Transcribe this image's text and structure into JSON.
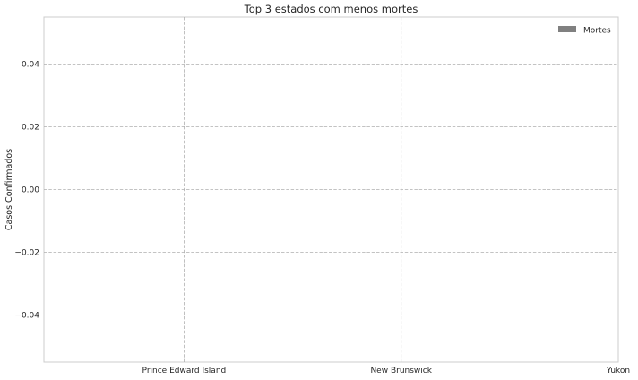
{
  "chart_data": {
    "type": "bar",
    "title": "Top 3 estados com menos mortes",
    "xlabel": "",
    "ylabel": "Casos Confirmados",
    "categories": [
      "Prince Edward Island",
      "New Brunswick",
      "Yukon"
    ],
    "series": [
      {
        "name": "Mortes",
        "values": [
          0,
          0,
          0
        ],
        "color": "#808080"
      }
    ],
    "ylim": [
      -0.055,
      0.055
    ],
    "yticks": [
      -0.04,
      -0.02,
      0.0,
      0.02,
      0.04
    ],
    "ytick_labels": [
      "−0.04",
      "−0.02",
      "0.00",
      "0.02",
      "0.04"
    ],
    "grid": true,
    "legend_position": "top-right"
  }
}
